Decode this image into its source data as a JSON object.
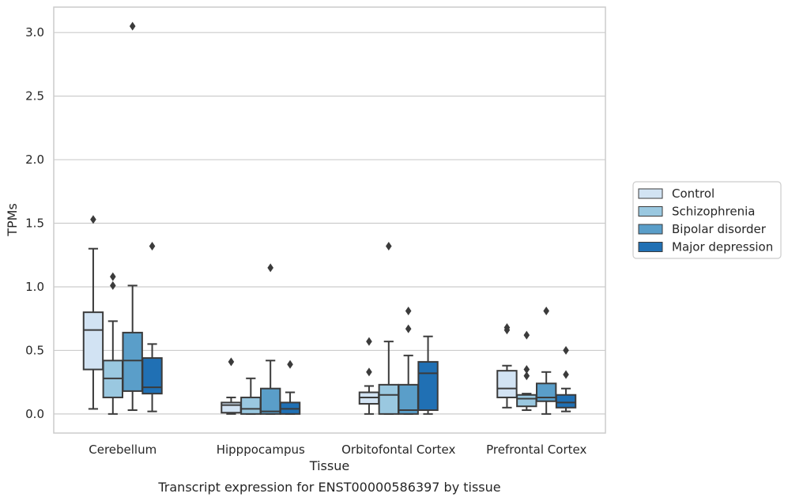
{
  "chart_data": {
    "type": "boxplot",
    "title": "",
    "xlabel": "Tissue",
    "ylabel": "TPMs",
    "caption": "Transcript expression for ENST00000586397 by tissue",
    "ylim": [
      -0.15,
      3.2
    ],
    "yticks": [
      "0.0",
      "0.5",
      "1.0",
      "1.5",
      "2.0",
      "2.5",
      "3.0"
    ],
    "grid": true,
    "legend_position": "right",
    "categories": [
      "Cerebellum",
      "Hipppocampus",
      "Orbitofontal Cortex",
      "Prefrontal Cortex"
    ],
    "series": [
      {
        "name": "Control",
        "color": "#d2e3f3",
        "boxes": [
          {
            "min": 0.04,
            "q1": 0.35,
            "median": 0.66,
            "q3": 0.8,
            "max": 1.3,
            "outliers": [
              1.53
            ]
          },
          {
            "min": 0.0,
            "q1": 0.01,
            "median": 0.07,
            "q3": 0.09,
            "max": 0.13,
            "outliers": [
              0.41
            ]
          },
          {
            "min": 0.0,
            "q1": 0.08,
            "median": 0.13,
            "q3": 0.17,
            "max": 0.22,
            "outliers": [
              0.33,
              0.57
            ]
          },
          {
            "min": 0.05,
            "q1": 0.13,
            "median": 0.2,
            "q3": 0.34,
            "max": 0.38,
            "outliers": [
              0.66,
              0.68
            ]
          }
        ]
      },
      {
        "name": "Schizophrenia",
        "color": "#9ac8e0",
        "boxes": [
          {
            "min": 0.0,
            "q1": 0.13,
            "median": 0.28,
            "q3": 0.42,
            "max": 0.73,
            "outliers": [
              1.01,
              1.08
            ]
          },
          {
            "min": 0.0,
            "q1": 0.0,
            "median": 0.04,
            "q3": 0.13,
            "max": 0.28,
            "outliers": []
          },
          {
            "min": 0.0,
            "q1": 0.0,
            "median": 0.15,
            "q3": 0.23,
            "max": 0.57,
            "outliers": [
              1.32
            ]
          },
          {
            "min": 0.03,
            "q1": 0.06,
            "median": 0.12,
            "q3": 0.15,
            "max": 0.16,
            "outliers": [
              0.3,
              0.35,
              0.62
            ]
          }
        ]
      },
      {
        "name": "Bipolar disorder",
        "color": "#5a9ec9",
        "boxes": [
          {
            "min": 0.03,
            "q1": 0.18,
            "median": 0.42,
            "q3": 0.64,
            "max": 1.01,
            "outliers": [
              3.05
            ]
          },
          {
            "min": 0.0,
            "q1": 0.0,
            "median": 0.02,
            "q3": 0.2,
            "max": 0.42,
            "outliers": [
              1.15
            ]
          },
          {
            "min": 0.0,
            "q1": 0.0,
            "median": 0.03,
            "q3": 0.23,
            "max": 0.46,
            "outliers": [
              0.67,
              0.81
            ]
          },
          {
            "min": 0.0,
            "q1": 0.1,
            "median": 0.13,
            "q3": 0.24,
            "max": 0.33,
            "outliers": [
              0.81
            ]
          }
        ]
      },
      {
        "name": "Major depression",
        "color": "#2070b4",
        "boxes": [
          {
            "min": 0.02,
            "q1": 0.16,
            "median": 0.21,
            "q3": 0.44,
            "max": 0.55,
            "outliers": [
              1.32
            ]
          },
          {
            "min": 0.0,
            "q1": 0.0,
            "median": 0.04,
            "q3": 0.09,
            "max": 0.17,
            "outliers": [
              0.39
            ]
          },
          {
            "min": 0.0,
            "q1": 0.03,
            "median": 0.32,
            "q3": 0.41,
            "max": 0.61,
            "outliers": []
          },
          {
            "min": 0.02,
            "q1": 0.05,
            "median": 0.09,
            "q3": 0.15,
            "max": 0.2,
            "outliers": [
              0.31,
              0.5
            ]
          }
        ]
      }
    ]
  },
  "colors": {
    "box_edge": "#3b3b3b",
    "grid": "#cccccc",
    "frame": "#cccccc"
  }
}
